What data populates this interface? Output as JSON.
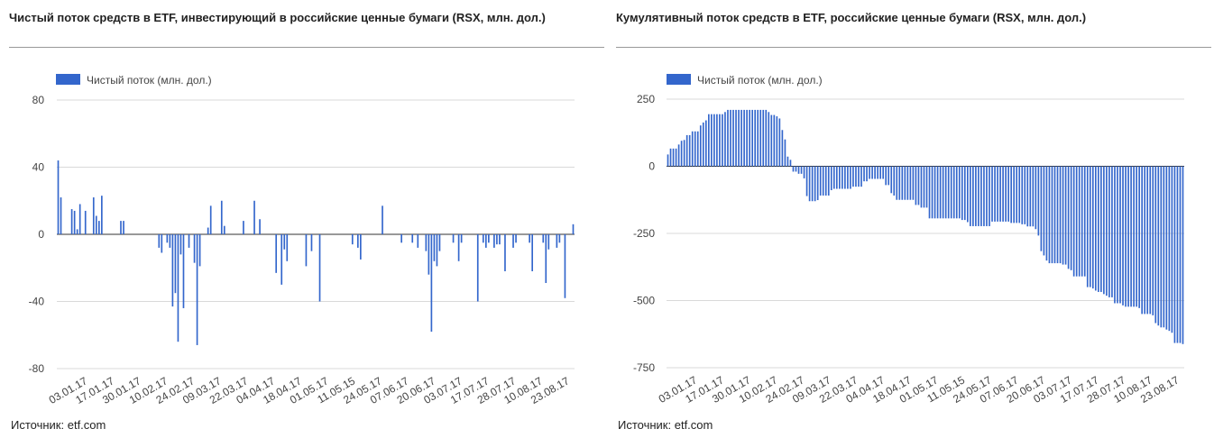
{
  "source_label": "Источник: etf.com",
  "colors": {
    "bar": "#3366cc",
    "grid": "#d9d9d9",
    "axis": "#333333"
  },
  "chart_data": [
    {
      "type": "bar",
      "title": "Чистый поток средств в ETF, инвестирующий в российские ценные бумаги (RSX, млн. дол.)",
      "legend": "Чистый поток (млн. дол.)",
      "legend_position": "top-left",
      "grid": true,
      "ylim": [
        -80,
        80
      ],
      "yticks": [
        80,
        40,
        0,
        -40,
        -80
      ],
      "xlabels": [
        "03.01.17",
        "17.01.17",
        "30.01.17",
        "10.02.17",
        "24.02.17",
        "09.03.17",
        "22.03.17",
        "04.04.17",
        "18.04.17",
        "01.05.17",
        "11.05.15",
        "24.05.17",
        "07.06.17",
        "20.06.17",
        "03.07.17",
        "17.07.17",
        "28.07.17",
        "10.08.17",
        "23.08.17"
      ],
      "values": [
        44,
        22,
        0,
        0,
        0,
        15,
        14,
        3,
        18,
        0,
        14,
        0,
        0,
        22,
        11,
        8,
        23,
        0,
        0,
        0,
        0,
        0,
        0,
        8,
        8,
        0,
        0,
        0,
        0,
        0,
        0,
        0,
        0,
        0,
        0,
        0,
        0,
        -8,
        -11,
        0,
        -5,
        -8,
        -43,
        -35,
        -64,
        -12,
        -44,
        0,
        -8,
        0,
        -17,
        -66,
        -19,
        0,
        0,
        4,
        17,
        0,
        0,
        0,
        20,
        5,
        0,
        0,
        0,
        0,
        0,
        0,
        8,
        0,
        0,
        0,
        20,
        0,
        9,
        0,
        0,
        0,
        0,
        0,
        -23,
        0,
        -30,
        -9,
        -16,
        0,
        0,
        0,
        0,
        0,
        0,
        -19,
        0,
        -10,
        0,
        0,
        -40,
        0,
        0,
        0,
        0,
        0,
        0,
        0,
        0,
        0,
        0,
        0,
        -6,
        0,
        -8,
        -15,
        0,
        0,
        0,
        0,
        0,
        0,
        0,
        17,
        0,
        0,
        0,
        0,
        0,
        0,
        -5,
        0,
        0,
        0,
        -5,
        0,
        -8,
        0,
        0,
        -10,
        -24,
        -58,
        -16,
        -19,
        -10,
        0,
        0,
        0,
        0,
        -5,
        0,
        -16,
        -5,
        0,
        0,
        0,
        0,
        0,
        -40,
        0,
        -5,
        -8,
        -5,
        0,
        -8,
        -6,
        -6,
        0,
        -22,
        0,
        0,
        -8,
        -5,
        0,
        0,
        0,
        0,
        -5,
        -22,
        0,
        0,
        0,
        -5,
        -29,
        -9,
        0,
        0,
        -8,
        -5,
        0,
        -38,
        0,
        0,
        6
      ]
    },
    {
      "type": "bar",
      "title": "Кумулятивный поток средств в ETF, российские ценные бумаги (RSX, млн. дол.)",
      "legend": "Чистый поток (млн. дол.)",
      "legend_position": "top-left",
      "grid": true,
      "ylim": [
        -750,
        250
      ],
      "yticks": [
        250,
        0,
        -250,
        -500,
        -750
      ],
      "xlabels": [
        "03.01.17",
        "17.01.17",
        "30.01.17",
        "10.02.17",
        "24.02.17",
        "09.03.17",
        "22.03.17",
        "04.04.17",
        "18.04.17",
        "01.05.17",
        "11.05.15",
        "24.05.17",
        "07.06.17",
        "20.06.17",
        "03.07.17",
        "17.07.17",
        "28.07.17",
        "10.08.17",
        "23.08.17"
      ],
      "values": [
        44,
        66,
        66,
        66,
        81,
        95,
        98,
        116,
        116,
        130,
        130,
        130,
        152,
        163,
        171,
        194,
        194,
        194,
        194,
        194,
        194,
        202,
        210,
        210,
        210,
        210,
        210,
        210,
        210,
        210,
        210,
        210,
        210,
        210,
        210,
        210,
        210,
        202,
        191,
        191,
        186,
        178,
        135,
        100,
        36,
        24,
        -20,
        -20,
        -28,
        -28,
        -45,
        -111,
        -130,
        -130,
        -130,
        -126,
        -109,
        -109,
        -109,
        -109,
        -89,
        -84,
        -84,
        -84,
        -84,
        -84,
        -84,
        -84,
        -76,
        -76,
        -76,
        -76,
        -56,
        -56,
        -47,
        -47,
        -47,
        -47,
        -47,
        -47,
        -70,
        -70,
        -100,
        -109,
        -125,
        -125,
        -125,
        -125,
        -125,
        -125,
        -125,
        -144,
        -144,
        -154,
        -154,
        -154,
        -194,
        -194,
        -194,
        -194,
        -194,
        -194,
        -194,
        -194,
        -194,
        -194,
        -194,
        -194,
        -200,
        -200,
        -208,
        -223,
        -223,
        -223,
        -223,
        -223,
        -223,
        -223,
        -223,
        -206,
        -206,
        -206,
        -206,
        -206,
        -206,
        -206,
        -211,
        -211,
        -211,
        -211,
        -216,
        -216,
        -224,
        -224,
        -224,
        -234,
        -258,
        -316,
        -332,
        -351,
        -361,
        -361,
        -361,
        -361,
        -361,
        -366,
        -366,
        -382,
        -387,
        -410,
        -410,
        -410,
        -410,
        -410,
        -450,
        -450,
        -455,
        -463,
        -468,
        -468,
        -476,
        -482,
        -488,
        -488,
        -510,
        -510,
        -510,
        -518,
        -523,
        -523,
        -523,
        -523,
        -523,
        -528,
        -550,
        -550,
        -550,
        -550,
        -555,
        -584,
        -593,
        -600,
        -600,
        -608,
        -613,
        -620,
        -658,
        -658,
        -658,
        -662
      ]
    }
  ]
}
